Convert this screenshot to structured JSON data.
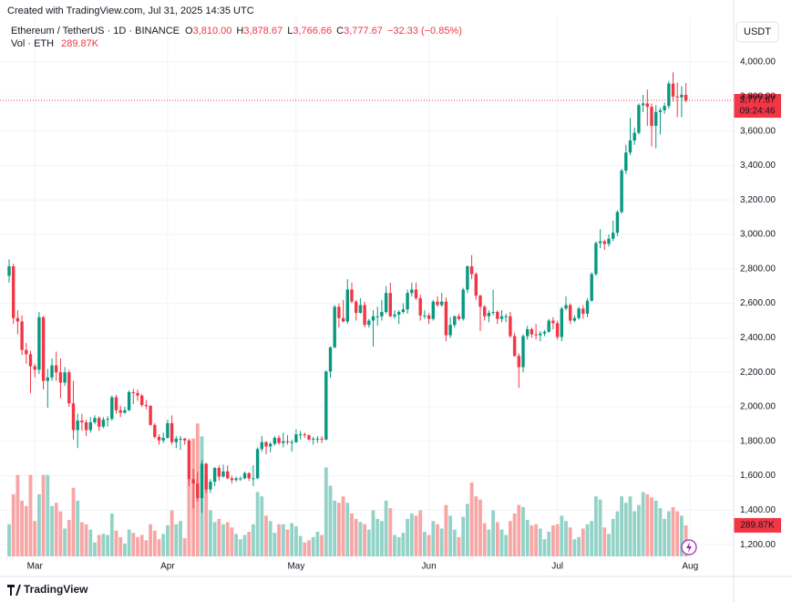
{
  "chart_data": {
    "type": "candlestick",
    "created": "Created with TradingView.com, Jul 31, 2025 14:35 UTC",
    "symbol": "Ethereum / TetherUS · 1D · BINANCE",
    "legend": {
      "o": "O",
      "open": "3,810.00",
      "h": "H",
      "high": "3,878.67",
      "l": "L",
      "low": "3,766.66",
      "c": "C",
      "close": "3,777.67",
      "change": "−32.33 (−0.85%)"
    },
    "currency": "USDT",
    "last_price_label": "3,777.67",
    "countdown": "09:24:46",
    "watermark": "TradingView",
    "up_color": "#089981",
    "down_color": "#f23645",
    "volume_up_color": "#92d2c7",
    "volume_down_color": "#f7a6a5",
    "grid": true,
    "ylim": [
      1132,
      4106
    ],
    "yticks": [
      {
        "value": 1200,
        "label": "1,200.00"
      },
      {
        "value": 1400,
        "label": "1,400.00"
      },
      {
        "value": 1600,
        "label": "1,600.00"
      },
      {
        "value": 1800,
        "label": "1,800.00"
      },
      {
        "value": 2000,
        "label": "2,000.00"
      },
      {
        "value": 2200,
        "label": "2,200.00"
      },
      {
        "value": 2400,
        "label": "2,400.00"
      },
      {
        "value": 2600,
        "label": "2,600.00"
      },
      {
        "value": 2800,
        "label": "2,800.00"
      },
      {
        "value": 3000,
        "label": "3,000.00"
      },
      {
        "value": 3200,
        "label": "3,200.00"
      },
      {
        "value": 3400,
        "label": "3,400.00"
      },
      {
        "value": 3600,
        "label": "3,600.00"
      },
      {
        "value": 3800,
        "label": "3,800.00"
      },
      {
        "value": 4000,
        "label": "4,000.00"
      }
    ],
    "xticks": [
      {
        "value": 6,
        "label": "Mar"
      },
      {
        "value": 37,
        "label": "Apr"
      },
      {
        "value": 67,
        "label": "May"
      },
      {
        "value": 98,
        "label": "Jun"
      },
      {
        "value": 128,
        "label": "Jul"
      },
      {
        "value": 159,
        "label": "Aug"
      }
    ],
    "ohlc": [
      [
        2760,
        2855,
        2720,
        2815
      ],
      [
        2815,
        2830,
        2480,
        2515
      ],
      [
        2515,
        2560,
        2420,
        2495
      ],
      [
        2495,
        2530,
        2300,
        2330
      ],
      [
        2330,
        2370,
        2250,
        2305
      ],
      [
        2305,
        2325,
        2080,
        2235
      ],
      [
        2235,
        2250,
        2170,
        2215
      ],
      [
        2215,
        2550,
        2190,
        2520
      ],
      [
        2520,
        2525,
        2100,
        2150
      ],
      [
        2150,
        2220,
        1995,
        2170
      ],
      [
        2170,
        2280,
        2150,
        2240
      ],
      [
        2240,
        2320,
        2150,
        2200
      ],
      [
        2200,
        2280,
        2050,
        2140
      ],
      [
        2140,
        2230,
        2120,
        2200
      ],
      [
        2200,
        2215,
        2000,
        2020
      ],
      [
        2020,
        2150,
        1810,
        1865
      ],
      [
        1865,
        1960,
        1760,
        1920
      ],
      [
        1920,
        1960,
        1860,
        1910
      ],
      [
        1910,
        1925,
        1830,
        1865
      ],
      [
        1865,
        1940,
        1850,
        1910
      ],
      [
        1910,
        1950,
        1900,
        1935
      ],
      [
        1935,
        1945,
        1860,
        1885
      ],
      [
        1885,
        1940,
        1875,
        1925
      ],
      [
        1925,
        1945,
        1885,
        1930
      ],
      [
        1930,
        2065,
        1920,
        2055
      ],
      [
        2055,
        2070,
        1960,
        1980
      ],
      [
        1980,
        2005,
        1940,
        1965
      ],
      [
        1965,
        2000,
        1960,
        1980
      ],
      [
        1980,
        2095,
        1975,
        2085
      ],
      [
        2085,
        2105,
        2015,
        2080
      ],
      [
        2080,
        2100,
        2035,
        2065
      ],
      [
        2065,
        2075,
        2000,
        2010
      ],
      [
        2010,
        2040,
        1985,
        2005
      ],
      [
        2005,
        2010,
        1890,
        1895
      ],
      [
        1895,
        1905,
        1815,
        1825
      ],
      [
        1825,
        1840,
        1780,
        1805
      ],
      [
        1805,
        1850,
        1790,
        1820
      ],
      [
        1820,
        1925,
        1815,
        1905
      ],
      [
        1905,
        1950,
        1780,
        1795
      ],
      [
        1795,
        1830,
        1760,
        1815
      ],
      [
        1815,
        1830,
        1750,
        1815
      ],
      [
        1815,
        1820,
        1780,
        1805
      ],
      [
        1805,
        1815,
        1540,
        1580
      ],
      [
        1580,
        1640,
        1410,
        1555
      ],
      [
        1555,
        1620,
        1450,
        1470
      ],
      [
        1470,
        1690,
        1385,
        1670
      ],
      [
        1670,
        1675,
        1500,
        1520
      ],
      [
        1520,
        1580,
        1500,
        1565
      ],
      [
        1565,
        1650,
        1540,
        1645
      ],
      [
        1645,
        1660,
        1570,
        1595
      ],
      [
        1595,
        1665,
        1590,
        1625
      ],
      [
        1625,
        1660,
        1580,
        1585
      ],
      [
        1585,
        1600,
        1555,
        1575
      ],
      [
        1575,
        1595,
        1565,
        1585
      ],
      [
        1585,
        1595,
        1570,
        1585
      ],
      [
        1585,
        1625,
        1580,
        1615
      ],
      [
        1615,
        1620,
        1570,
        1585
      ],
      [
        1585,
        1660,
        1540,
        1585
      ],
      [
        1585,
        1765,
        1580,
        1755
      ],
      [
        1755,
        1830,
        1740,
        1795
      ],
      [
        1795,
        1800,
        1725,
        1770
      ],
      [
        1770,
        1795,
        1735,
        1785
      ],
      [
        1785,
        1830,
        1775,
        1820
      ],
      [
        1820,
        1835,
        1780,
        1790
      ],
      [
        1790,
        1850,
        1765,
        1800
      ],
      [
        1800,
        1835,
        1780,
        1795
      ],
      [
        1795,
        1810,
        1740,
        1795
      ],
      [
        1795,
        1870,
        1790,
        1840
      ],
      [
        1840,
        1860,
        1810,
        1840
      ],
      [
        1840,
        1850,
        1820,
        1835
      ],
      [
        1835,
        1840,
        1805,
        1810
      ],
      [
        1810,
        1825,
        1780,
        1815
      ],
      [
        1815,
        1830,
        1790,
        1815
      ],
      [
        1815,
        1830,
        1790,
        1810
      ],
      [
        1810,
        2210,
        1805,
        2205
      ],
      [
        2205,
        2350,
        2170,
        2345
      ],
      [
        2345,
        2590,
        2340,
        2580
      ],
      [
        2580,
        2600,
        2460,
        2515
      ],
      [
        2515,
        2620,
        2490,
        2495
      ],
      [
        2495,
        2740,
        2480,
        2680
      ],
      [
        2680,
        2720,
        2600,
        2610
      ],
      [
        2610,
        2620,
        2500,
        2545
      ],
      [
        2545,
        2630,
        2540,
        2590
      ],
      [
        2590,
        2610,
        2460,
        2475
      ],
      [
        2475,
        2510,
        2460,
        2500
      ],
      [
        2500,
        2560,
        2350,
        2525
      ],
      [
        2525,
        2580,
        2470,
        2525
      ],
      [
        2525,
        2620,
        2500,
        2550
      ],
      [
        2550,
        2700,
        2540,
        2660
      ],
      [
        2660,
        2720,
        2520,
        2525
      ],
      [
        2525,
        2560,
        2510,
        2535
      ],
      [
        2535,
        2560,
        2480,
        2550
      ],
      [
        2550,
        2600,
        2540,
        2565
      ],
      [
        2565,
        2680,
        2540,
        2660
      ],
      [
        2660,
        2720,
        2640,
        2680
      ],
      [
        2680,
        2720,
        2620,
        2630
      ],
      [
        2630,
        2650,
        2500,
        2530
      ],
      [
        2530,
        2560,
        2510,
        2530
      ],
      [
        2530,
        2545,
        2480,
        2510
      ],
      [
        2510,
        2620,
        2500,
        2610
      ],
      [
        2610,
        2640,
        2580,
        2590
      ],
      [
        2590,
        2660,
        2580,
        2610
      ],
      [
        2610,
        2635,
        2380,
        2415
      ],
      [
        2415,
        2520,
        2400,
        2475
      ],
      [
        2475,
        2530,
        2460,
        2525
      ],
      [
        2525,
        2540,
        2500,
        2510
      ],
      [
        2510,
        2690,
        2500,
        2680
      ],
      [
        2680,
        2820,
        2660,
        2815
      ],
      [
        2815,
        2880,
        2740,
        2770
      ],
      [
        2770,
        2780,
        2620,
        2645
      ],
      [
        2645,
        2650,
        2440,
        2580
      ],
      [
        2580,
        2590,
        2500,
        2525
      ],
      [
        2525,
        2560,
        2490,
        2545
      ],
      [
        2545,
        2680,
        2530,
        2550
      ],
      [
        2550,
        2560,
        2480,
        2510
      ],
      [
        2510,
        2560,
        2490,
        2525
      ],
      [
        2525,
        2540,
        2490,
        2525
      ],
      [
        2525,
        2550,
        2400,
        2410
      ],
      [
        2410,
        2430,
        2290,
        2295
      ],
      [
        2295,
        2310,
        2110,
        2230
      ],
      [
        2230,
        2420,
        2200,
        2410
      ],
      [
        2410,
        2470,
        2390,
        2450
      ],
      [
        2450,
        2460,
        2400,
        2420
      ],
      [
        2420,
        2480,
        2390,
        2415
      ],
      [
        2415,
        2440,
        2380,
        2425
      ],
      [
        2425,
        2445,
        2410,
        2435
      ],
      [
        2435,
        2510,
        2430,
        2500
      ],
      [
        2500,
        2520,
        2450,
        2485
      ],
      [
        2485,
        2500,
        2390,
        2405
      ],
      [
        2405,
        2580,
        2380,
        2570
      ],
      [
        2570,
        2640,
        2560,
        2590
      ],
      [
        2590,
        2600,
        2480,
        2500
      ],
      [
        2500,
        2530,
        2490,
        2515
      ],
      [
        2515,
        2580,
        2505,
        2570
      ],
      [
        2570,
        2590,
        2510,
        2540
      ],
      [
        2540,
        2630,
        2520,
        2615
      ],
      [
        2615,
        2780,
        2610,
        2770
      ],
      [
        2770,
        2960,
        2760,
        2950
      ],
      [
        2950,
        3030,
        2920,
        2960
      ],
      [
        2960,
        2970,
        2910,
        2945
      ],
      [
        2945,
        3000,
        2930,
        2975
      ],
      [
        2975,
        3080,
        2960,
        3010
      ],
      [
        3010,
        3140,
        2990,
        3130
      ],
      [
        3130,
        3380,
        3120,
        3370
      ],
      [
        3370,
        3520,
        3350,
        3475
      ],
      [
        3475,
        3675,
        3460,
        3545
      ],
      [
        3545,
        3620,
        3520,
        3590
      ],
      [
        3590,
        3760,
        3580,
        3750
      ],
      [
        3750,
        3810,
        3710,
        3760
      ],
      [
        3760,
        3840,
        3630,
        3740
      ],
      [
        3740,
        3760,
        3510,
        3630
      ],
      [
        3630,
        3750,
        3500,
        3710
      ],
      [
        3710,
        3735,
        3580,
        3720
      ],
      [
        3720,
        3765,
        3700,
        3745
      ],
      [
        3745,
        3890,
        3730,
        3875
      ],
      [
        3875,
        3940,
        3770,
        3800
      ],
      [
        3800,
        3880,
        3680,
        3795
      ],
      [
        3795,
        3860,
        3680,
        3810
      ],
      [
        3810,
        3878.67,
        3766.66,
        3777.67
      ]
    ],
    "volume": {
      "name": "Vol · ETH",
      "last_value_label": "289.87K",
      "ylim": [
        0,
        1600000
      ],
      "values": [
        300000,
        580000,
        760000,
        520000,
        470000,
        760000,
        330000,
        580000,
        760000,
        760000,
        470000,
        500000,
        420000,
        260000,
        340000,
        640000,
        520000,
        320000,
        300000,
        250000,
        130000,
        200000,
        210000,
        200000,
        400000,
        240000,
        180000,
        120000,
        250000,
        220000,
        180000,
        200000,
        150000,
        300000,
        240000,
        160000,
        210000,
        290000,
        430000,
        300000,
        330000,
        170000,
        720000,
        1100000,
        1240000,
        1120000,
        760000,
        430000,
        320000,
        350000,
        300000,
        320000,
        270000,
        210000,
        160000,
        200000,
        230000,
        300000,
        600000,
        560000,
        380000,
        330000,
        220000,
        300000,
        300000,
        250000,
        310000,
        280000,
        190000,
        130000,
        150000,
        180000,
        230000,
        200000,
        830000,
        660000,
        520000,
        500000,
        560000,
        500000,
        400000,
        350000,
        320000,
        300000,
        250000,
        430000,
        350000,
        330000,
        520000,
        450000,
        200000,
        180000,
        220000,
        350000,
        400000,
        380000,
        430000,
        230000,
        200000,
        330000,
        300000,
        260000,
        480000,
        380000,
        250000,
        180000,
        370000,
        490000,
        690000,
        560000,
        530000,
        310000,
        250000,
        430000,
        320000,
        250000,
        200000,
        330000,
        400000,
        480000,
        460000,
        340000,
        290000,
        300000,
        260000,
        160000,
        230000,
        290000,
        300000,
        380000,
        330000,
        270000,
        160000,
        180000,
        260000,
        300000,
        330000,
        560000,
        530000,
        270000,
        210000,
        350000,
        420000,
        560000,
        500000,
        560000,
        420000,
        480000,
        600000,
        580000,
        550000,
        520000,
        450000,
        350000,
        420000,
        460000,
        420000,
        380000,
        289870
      ]
    }
  }
}
